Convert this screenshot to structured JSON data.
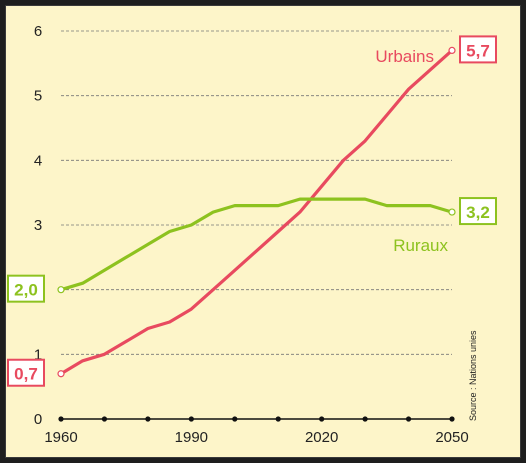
{
  "chart_data": {
    "type": "line",
    "title": "",
    "xlabel": "",
    "ylabel": "",
    "xlim": [
      1960,
      2050
    ],
    "ylim": [
      0,
      6
    ],
    "x_ticks": [
      "1960",
      "1990",
      "2020",
      "2050"
    ],
    "y_ticks": [
      "0",
      "1",
      "3",
      "4",
      "5",
      "6"
    ],
    "grid": "horizontal-dashed",
    "source": "Source : Nations unies",
    "series": [
      {
        "name": "Urbains",
        "color": "#e84a5f",
        "x": [
          1960,
          1965,
          1970,
          1975,
          1980,
          1985,
          1990,
          1995,
          2000,
          2005,
          2010,
          2015,
          2020,
          2025,
          2030,
          2035,
          2040,
          2045,
          2050
        ],
        "y": [
          0.7,
          0.9,
          1.0,
          1.2,
          1.4,
          1.5,
          1.7,
          2.0,
          2.3,
          2.6,
          2.9,
          3.2,
          3.6,
          4.0,
          4.3,
          4.7,
          5.1,
          5.4,
          5.7
        ],
        "start_label": "0,7",
        "end_label": "5,7"
      },
      {
        "name": "Ruraux",
        "color": "#8dc21f",
        "x": [
          1960,
          1965,
          1970,
          1975,
          1980,
          1985,
          1990,
          1995,
          2000,
          2005,
          2010,
          2015,
          2020,
          2025,
          2030,
          2035,
          2040,
          2045,
          2050
        ],
        "y": [
          2.0,
          2.1,
          2.3,
          2.5,
          2.7,
          2.9,
          3.0,
          3.2,
          3.3,
          3.3,
          3.3,
          3.4,
          3.4,
          3.4,
          3.4,
          3.3,
          3.3,
          3.3,
          3.2
        ],
        "start_label": "2,0",
        "end_label": "3,2"
      }
    ]
  }
}
